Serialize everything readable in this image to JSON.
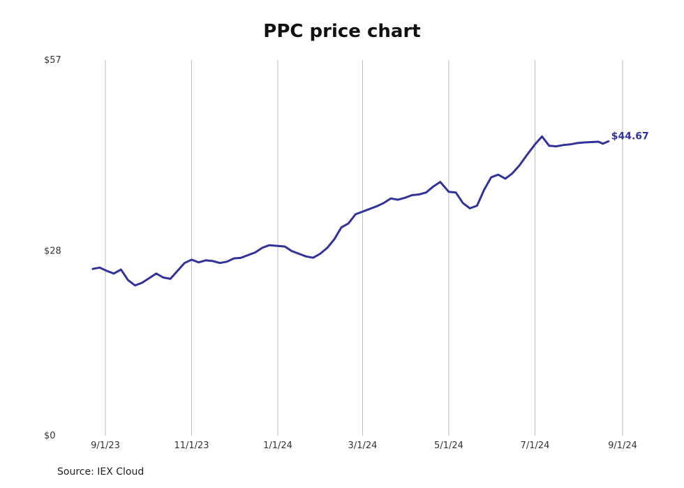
{
  "chart_data": {
    "type": "line",
    "title": "PPC price chart",
    "source": "Source: IEX Cloud",
    "xlabel": "",
    "ylabel": "",
    "x_ticks": [
      "9/1/23",
      "11/1/23",
      "1/1/24",
      "3/1/24",
      "5/1/24",
      "7/1/24",
      "9/1/24"
    ],
    "y_ticks": [
      "$0",
      "$28",
      "$57"
    ],
    "ylim": [
      0,
      57
    ],
    "xlim": [
      "2023-08-23",
      "2024-09-08"
    ],
    "grid": "vertical",
    "line_color": "#33329b",
    "last_value_label": "$44.67",
    "series": [
      {
        "x": [
          "2023-08-23",
          "2023-08-28",
          "2023-09-02",
          "2023-09-07",
          "2023-09-12",
          "2023-09-17",
          "2023-09-22",
          "2023-09-27",
          "2023-10-02",
          "2023-10-07",
          "2023-10-12",
          "2023-10-17",
          "2023-10-22",
          "2023-10-27",
          "2023-11-01",
          "2023-11-06",
          "2023-11-11",
          "2023-11-16",
          "2023-11-21",
          "2023-11-26",
          "2023-12-01",
          "2023-12-06",
          "2023-12-11",
          "2023-12-16",
          "2023-12-21",
          "2023-12-26",
          "2024-01-01",
          "2024-01-06",
          "2024-01-11",
          "2024-01-16",
          "2024-01-21",
          "2024-01-26",
          "2024-01-31",
          "2024-02-05",
          "2024-02-10",
          "2024-02-15",
          "2024-02-20",
          "2024-02-25",
          "2024-03-01",
          "2024-03-06",
          "2024-03-11",
          "2024-03-16",
          "2024-03-21",
          "2024-03-26",
          "2024-03-31",
          "2024-04-05",
          "2024-04-10",
          "2024-04-15",
          "2024-04-20",
          "2024-04-25",
          "2024-05-01",
          "2024-05-06",
          "2024-05-11",
          "2024-05-16",
          "2024-05-21",
          "2024-05-26",
          "2024-05-31",
          "2024-06-05",
          "2024-06-10",
          "2024-06-15",
          "2024-06-20",
          "2024-06-25",
          "2024-07-01",
          "2024-07-06",
          "2024-07-11",
          "2024-07-16",
          "2024-07-21",
          "2024-07-26",
          "2024-07-31",
          "2024-08-05",
          "2024-08-10",
          "2024-08-15",
          "2024-08-18",
          "2024-08-22"
        ],
        "y": [
          25.3,
          25.5,
          25.0,
          24.6,
          25.2,
          23.6,
          22.8,
          23.2,
          23.9,
          24.6,
          24.0,
          23.8,
          25.0,
          26.2,
          26.7,
          26.3,
          26.6,
          26.5,
          26.2,
          26.4,
          26.9,
          27.0,
          27.4,
          27.8,
          28.5,
          28.9,
          28.8,
          28.7,
          28.0,
          27.6,
          27.2,
          27.0,
          27.6,
          28.5,
          29.8,
          31.6,
          32.2,
          33.6,
          34.0,
          34.4,
          34.8,
          35.3,
          36.0,
          35.8,
          36.1,
          36.5,
          36.6,
          36.9,
          37.8,
          38.5,
          37.0,
          36.9,
          35.3,
          34.5,
          34.9,
          37.3,
          39.2,
          39.6,
          39.0,
          39.8,
          41.0,
          42.5,
          44.2,
          45.4,
          44.0,
          43.9,
          44.1,
          44.2,
          44.4,
          44.5,
          44.55,
          44.6,
          44.3,
          44.67
        ]
      }
    ]
  }
}
